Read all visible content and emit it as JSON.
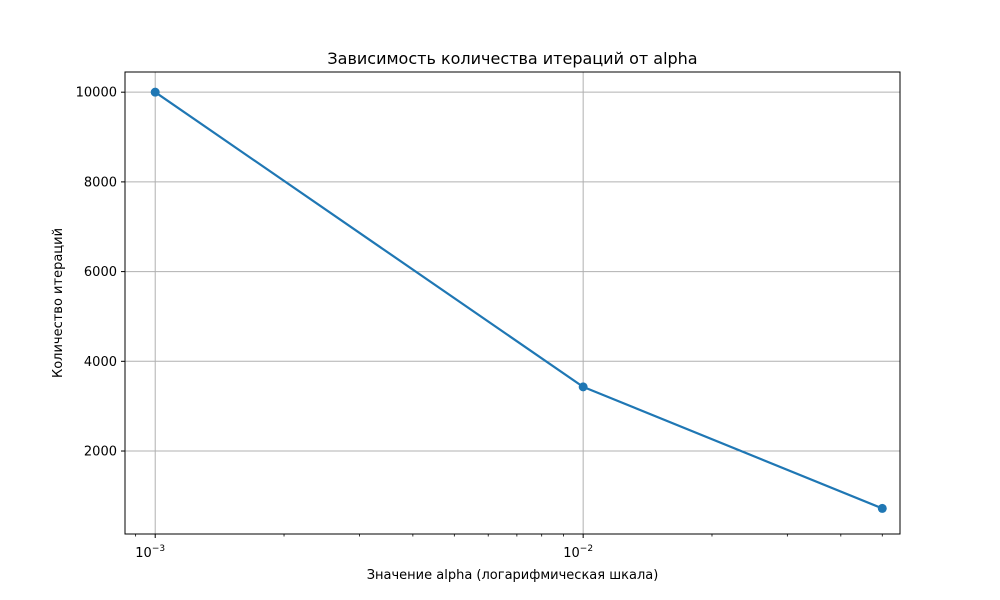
{
  "chart_data": {
    "type": "line",
    "title": "Зависимость количества итераций от alpha",
    "xlabel": "Значение alpha (логарифмическая шкала)",
    "ylabel": "Количество итераций",
    "xscale": "log",
    "xlim": [
      0.00085,
      0.055
    ],
    "ylim": [
      150,
      10450
    ],
    "grid": true,
    "x_ticks": [
      {
        "value": 0.001,
        "base": "10",
        "exp": "−3"
      },
      {
        "value": 0.01,
        "base": "10",
        "exp": "−2"
      }
    ],
    "y_ticks": [
      2000,
      4000,
      6000,
      8000,
      10000
    ],
    "series": [
      {
        "color": "#1f77b4",
        "x": [
          0.001,
          0.01,
          0.05
        ],
        "y": [
          10000,
          3430,
          720
        ]
      }
    ]
  }
}
